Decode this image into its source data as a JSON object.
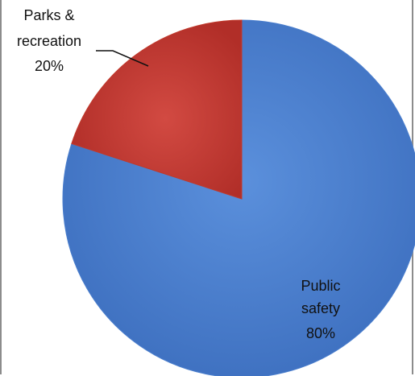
{
  "chart_data": {
    "type": "pie",
    "slices": [
      {
        "label_line1": "Public",
        "label_line2": "safety",
        "percent_label": "80%",
        "value": 80,
        "color": "#4a7ecd"
      },
      {
        "label_line1": "Parks &",
        "label_line2": "recreation",
        "percent_label": "20%",
        "value": 20,
        "color": "#c0392b"
      }
    ],
    "legend": "none",
    "start_angle": "12 o'clock, clockwise"
  }
}
